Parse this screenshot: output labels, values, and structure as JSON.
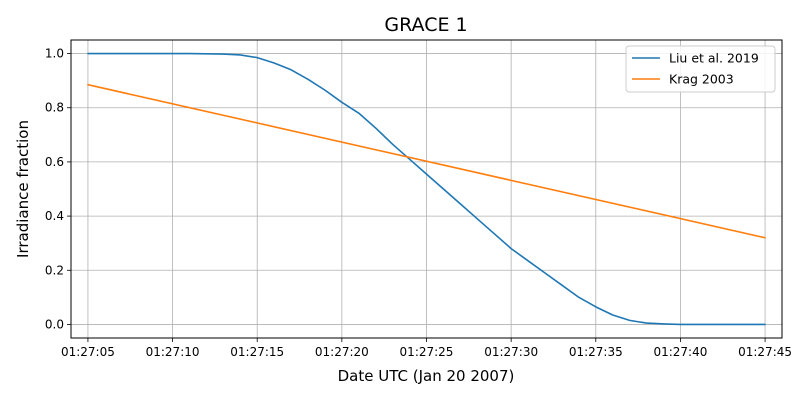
{
  "chart_data": {
    "type": "line",
    "title": "GRACE 1",
    "xlabel": "Date UTC (Jan 20 2007)",
    "ylabel": "Irradiance fraction",
    "x_unit": "time",
    "xlim": [
      "01:27:04",
      "01:27:46"
    ],
    "ylim": [
      -0.05,
      1.05
    ],
    "x_ticks": [
      "01:27:05",
      "01:27:10",
      "01:27:15",
      "01:27:20",
      "01:27:25",
      "01:27:30",
      "01:27:35",
      "01:27:40",
      "01:27:45"
    ],
    "y_ticks": [
      "0.0",
      "0.2",
      "0.4",
      "0.6",
      "0.8",
      "1.0"
    ],
    "grid": true,
    "legend_position": "top-right",
    "series": [
      {
        "name": "Liu et al. 2019",
        "color": "#1f77b4",
        "x": [
          "01:27:05",
          "01:27:07",
          "01:27:09",
          "01:27:11",
          "01:27:13",
          "01:27:14",
          "01:27:15",
          "01:27:16",
          "01:27:17",
          "01:27:18",
          "01:27:19",
          "01:27:20",
          "01:27:21",
          "01:27:22",
          "01:27:23",
          "01:27:24",
          "01:27:25",
          "01:27:26",
          "01:27:27",
          "01:27:28",
          "01:27:29",
          "01:27:30",
          "01:27:31",
          "01:27:32",
          "01:27:33",
          "01:27:34",
          "01:27:35",
          "01:27:36",
          "01:27:37",
          "01:27:38",
          "01:27:39",
          "01:27:40",
          "01:27:42",
          "01:27:45"
        ],
        "y": [
          1.0,
          1.0,
          1.0,
          1.0,
          0.998,
          0.995,
          0.985,
          0.965,
          0.94,
          0.905,
          0.865,
          0.82,
          0.78,
          0.725,
          0.665,
          0.61,
          0.555,
          0.5,
          0.445,
          0.39,
          0.335,
          0.28,
          0.235,
          0.19,
          0.145,
          0.1,
          0.065,
          0.035,
          0.015,
          0.005,
          0.002,
          0.0,
          0.0,
          0.0
        ]
      },
      {
        "name": "Krag 2003",
        "color": "#ff7f0e",
        "x": [
          "01:27:05",
          "01:27:45"
        ],
        "y": [
          0.885,
          0.32
        ]
      }
    ]
  }
}
